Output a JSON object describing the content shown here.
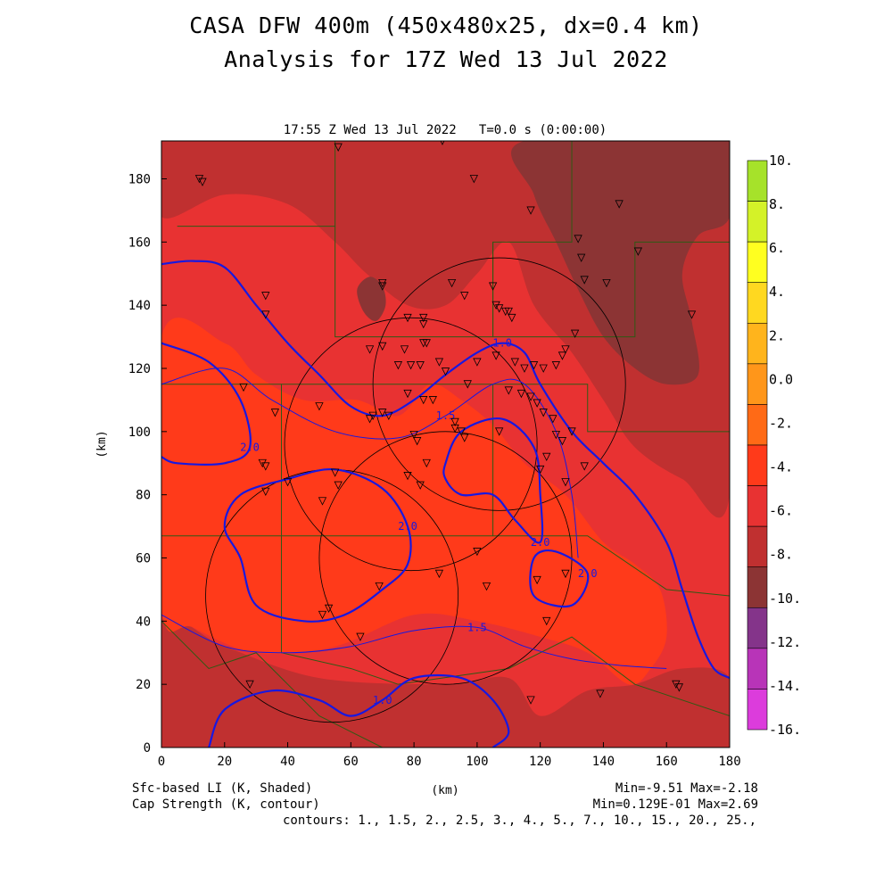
{
  "title": "CASA DFW 400m (450x480x25, dx=0.4 km)",
  "subtitle": "Analysis for 17Z Wed 13 Jul 2022",
  "colors": {
    "background": "#ffffff",
    "contour": "#1818e0",
    "map_lines": "#2f5a14",
    "radar_rings": "#000000"
  },
  "chart_data": {
    "type": "heatmap",
    "plot_header": "17:55 Z Wed 13 Jul 2022   T=0.0 s (0:00:00)",
    "xlabel": "(km)",
    "ylabel": "(km)",
    "xlim": [
      0,
      180
    ],
    "ylim": [
      0,
      192
    ],
    "x_ticks": [
      0,
      20,
      40,
      60,
      80,
      100,
      120,
      140,
      160,
      180
    ],
    "y_ticks": [
      0,
      20,
      40,
      60,
      80,
      100,
      120,
      140,
      160,
      180
    ],
    "shaded_field": "Sfc-based LI (K, Shaded)",
    "contour_field": "Cap Strength (K, contour)",
    "shaded_stats": "Min=-9.51 Max=-2.18",
    "contour_stats": "Min=0.129E-01 Max=2.69",
    "contour_levels_text": "contours: 1., 1.5, 2., 2.5, 3., 4., 5., 7., 10., 15., 20., 25.,",
    "colorbar": {
      "labels": [
        "10.",
        "8.",
        "6.",
        "4.",
        "2.",
        "0.0",
        "-2.",
        "-4.",
        "-6.",
        "-8.",
        "-10.",
        "-12.",
        "-14.",
        "-16."
      ],
      "colors": [
        "#a6e22a",
        "#d4f228",
        "#ffff20",
        "#ffd820",
        "#ffb41c",
        "#ff961a",
        "#ff6a16",
        "#ff3a1a",
        "#e83232",
        "#c03030",
        "#8c3434",
        "#84348a",
        "#b834b8",
        "#dc3cdc"
      ]
    },
    "regions": [
      {
        "name": "background",
        "value": -5,
        "color": "#e83232",
        "points": [
          [
            0,
            0
          ],
          [
            180,
            0
          ],
          [
            180,
            192
          ],
          [
            0,
            192
          ]
        ]
      },
      {
        "name": "southwest-band",
        "value": -6,
        "color": "#c03030",
        "points": [
          [
            0,
            40
          ],
          [
            20,
            32
          ],
          [
            50,
            22
          ],
          [
            90,
            20
          ],
          [
            110,
            22
          ],
          [
            120,
            10
          ],
          [
            135,
            18
          ],
          [
            150,
            20
          ],
          [
            165,
            25
          ],
          [
            180,
            22
          ],
          [
            180,
            0
          ],
          [
            0,
            0
          ]
        ]
      },
      {
        "name": "north-dark",
        "value": -7,
        "color": "#c03030",
        "points": [
          [
            0,
            168
          ],
          [
            20,
            175
          ],
          [
            40,
            172
          ],
          [
            55,
            160
          ],
          [
            65,
            150
          ],
          [
            78,
            140
          ],
          [
            90,
            140
          ],
          [
            100,
            150
          ],
          [
            110,
            160
          ],
          [
            118,
            140
          ],
          [
            130,
            125
          ],
          [
            140,
            110
          ],
          [
            150,
            95
          ],
          [
            165,
            85
          ],
          [
            180,
            80
          ],
          [
            180,
            192
          ],
          [
            0,
            192
          ]
        ]
      },
      {
        "name": "northeast-core",
        "value": -9,
        "color": "#8c3434",
        "points": [
          [
            115,
            192
          ],
          [
            118,
            175
          ],
          [
            125,
            160
          ],
          [
            132,
            145
          ],
          [
            140,
            130
          ],
          [
            150,
            120
          ],
          [
            160,
            115
          ],
          [
            170,
            118
          ],
          [
            168,
            135
          ],
          [
            165,
            150
          ],
          [
            170,
            162
          ],
          [
            180,
            168
          ],
          [
            180,
            192
          ]
        ]
      },
      {
        "name": "central-core",
        "value": -3,
        "color": "#ff3a1a",
        "points": [
          [
            0,
            130
          ],
          [
            20,
            128
          ],
          [
            30,
            118
          ],
          [
            45,
            110
          ],
          [
            62,
            110
          ],
          [
            75,
            105
          ],
          [
            85,
            115
          ],
          [
            95,
            110
          ],
          [
            105,
            102
          ],
          [
            115,
            90
          ],
          [
            128,
            80
          ],
          [
            140,
            65
          ],
          [
            150,
            58
          ],
          [
            158,
            50
          ],
          [
            160,
            35
          ],
          [
            155,
            25
          ],
          [
            148,
            20
          ],
          [
            135,
            30
          ],
          [
            120,
            35
          ],
          [
            100,
            40
          ],
          [
            80,
            42
          ],
          [
            55,
            32
          ],
          [
            30,
            30
          ],
          [
            10,
            38
          ],
          [
            0,
            45
          ]
        ]
      },
      {
        "name": "small-dark-cell",
        "value": -9,
        "color": "#8c3434",
        "points": [
          [
            62,
            145
          ],
          [
            66,
            149
          ],
          [
            70,
            146
          ],
          [
            71,
            140
          ],
          [
            68,
            135
          ],
          [
            64,
            138
          ]
        ]
      }
    ],
    "contours": [
      {
        "label": "1.0",
        "points": [
          [
            0,
            153
          ],
          [
            10,
            154
          ],
          [
            20,
            152
          ],
          [
            30,
            140
          ],
          [
            40,
            128
          ],
          [
            50,
            118
          ],
          [
            60,
            108
          ],
          [
            70,
            105
          ],
          [
            80,
            110
          ],
          [
            90,
            118
          ],
          [
            100,
            125
          ],
          [
            108,
            128
          ],
          [
            115,
            125
          ],
          [
            120,
            115
          ],
          [
            130,
            100
          ],
          [
            140,
            90
          ],
          [
            150,
            80
          ],
          [
            160,
            65
          ],
          [
            165,
            50
          ],
          [
            170,
            35
          ],
          [
            175,
            25
          ],
          [
            180,
            22
          ]
        ]
      },
      {
        "label": "2.0",
        "points": [
          [
            0,
            128
          ],
          [
            15,
            122
          ],
          [
            25,
            110
          ],
          [
            28,
            95
          ],
          [
            20,
            90
          ],
          [
            5,
            90
          ],
          [
            0,
            92
          ]
        ]
      },
      {
        "label": "2.0",
        "points": [
          [
            90,
            90
          ],
          [
            95,
            100
          ],
          [
            108,
            104
          ],
          [
            118,
            95
          ],
          [
            120,
            80
          ],
          [
            120,
            65
          ],
          [
            112,
            72
          ],
          [
            105,
            80
          ],
          [
            95,
            80
          ],
          [
            90,
            85
          ]
        ]
      },
      {
        "label": "1.0",
        "points": [
          [
            15,
            0
          ],
          [
            20,
            12
          ],
          [
            35,
            18
          ],
          [
            50,
            15
          ],
          [
            60,
            10
          ],
          [
            70,
            15
          ],
          [
            80,
            22
          ],
          [
            95,
            22
          ],
          [
            105,
            15
          ],
          [
            110,
            5
          ],
          [
            105,
            0
          ]
        ]
      },
      {
        "label": "2.0",
        "points": [
          [
            25,
            60
          ],
          [
            20,
            70
          ],
          [
            25,
            80
          ],
          [
            40,
            85
          ],
          [
            55,
            88
          ],
          [
            70,
            82
          ],
          [
            78,
            70
          ],
          [
            78,
            58
          ],
          [
            70,
            50
          ],
          [
            58,
            42
          ],
          [
            45,
            40
          ],
          [
            30,
            45
          ]
        ]
      },
      {
        "label": "2.0",
        "points": [
          [
            118,
            60
          ],
          [
            125,
            62
          ],
          [
            135,
            55
          ],
          [
            130,
            45
          ],
          [
            118,
            48
          ]
        ]
      }
    ],
    "thin_contours": [
      {
        "label": "1.5",
        "points": [
          [
            0,
            42
          ],
          [
            20,
            32
          ],
          [
            40,
            30
          ],
          [
            60,
            32
          ],
          [
            80,
            37
          ],
          [
            100,
            38
          ],
          [
            115,
            32
          ],
          [
            130,
            28
          ],
          [
            145,
            26
          ],
          [
            160,
            25
          ]
        ]
      },
      {
        "label": "1.5",
        "points": [
          [
            0,
            115
          ],
          [
            20,
            120
          ],
          [
            35,
            110
          ],
          [
            55,
            100
          ],
          [
            75,
            98
          ],
          [
            90,
            105
          ],
          [
            105,
            115
          ],
          [
            115,
            115
          ],
          [
            125,
            100
          ],
          [
            130,
            80
          ],
          [
            132,
            60
          ]
        ]
      }
    ],
    "radar_circles": [
      {
        "cx": 107,
        "cy": 115,
        "r": 40
      },
      {
        "cx": 79,
        "cy": 96,
        "r": 40
      },
      {
        "cx": 90,
        "cy": 60,
        "r": 40
      },
      {
        "cx": 54,
        "cy": 48,
        "r": 40
      }
    ],
    "county_lines": [
      [
        [
          5,
          165
        ],
        [
          55,
          165
        ],
        [
          55,
          192
        ]
      ],
      [
        [
          55,
          165
        ],
        [
          55,
          130
        ],
        [
          105,
          130
        ],
        [
          105,
          160
        ],
        [
          130,
          160
        ],
        [
          130,
          192
        ]
      ],
      [
        [
          105,
          160
        ],
        [
          105,
          130
        ],
        [
          150,
          130
        ],
        [
          150,
          160
        ],
        [
          180,
          160
        ]
      ],
      [
        [
          0,
          115
        ],
        [
          38,
          115
        ],
        [
          38,
          67
        ],
        [
          0,
          67
        ]
      ],
      [
        [
          38,
          115
        ],
        [
          105,
          115
        ],
        [
          105,
          67
        ],
        [
          38,
          67
        ]
      ],
      [
        [
          105,
          115
        ],
        [
          135,
          115
        ],
        [
          135,
          100
        ],
        [
          180,
          100
        ]
      ],
      [
        [
          38,
          67
        ],
        [
          38,
          30
        ],
        [
          60,
          25
        ],
        [
          75,
          20
        ]
      ],
      [
        [
          105,
          67
        ],
        [
          135,
          67
        ],
        [
          160,
          50
        ],
        [
          180,
          48
        ]
      ],
      [
        [
          75,
          20
        ],
        [
          110,
          25
        ],
        [
          130,
          35
        ],
        [
          150,
          20
        ],
        [
          180,
          10
        ]
      ],
      [
        [
          0,
          40
        ],
        [
          15,
          25
        ],
        [
          30,
          30
        ],
        [
          40,
          20
        ],
        [
          50,
          10
        ],
        [
          60,
          5
        ],
        [
          70,
          0
        ]
      ]
    ],
    "stations": [
      [
        12,
        180
      ],
      [
        13,
        179
      ],
      [
        56,
        190
      ],
      [
        89,
        192
      ],
      [
        99,
        180
      ],
      [
        117,
        170
      ],
      [
        145,
        172
      ],
      [
        151,
        157
      ],
      [
        132,
        161
      ],
      [
        133,
        155
      ],
      [
        134,
        148
      ],
      [
        141,
        147
      ],
      [
        168,
        137
      ],
      [
        33,
        143
      ],
      [
        33,
        137
      ],
      [
        70,
        147
      ],
      [
        70,
        146
      ],
      [
        92,
        147
      ],
      [
        96,
        143
      ],
      [
        105,
        146
      ],
      [
        106,
        140
      ],
      [
        107,
        139
      ],
      [
        109,
        138
      ],
      [
        110,
        138
      ],
      [
        111,
        136
      ],
      [
        66,
        126
      ],
      [
        70,
        127
      ],
      [
        78,
        136
      ],
      [
        83,
        136
      ],
      [
        83,
        134
      ],
      [
        84,
        128
      ],
      [
        77,
        126
      ],
      [
        75,
        121
      ],
      [
        79,
        121
      ],
      [
        82,
        121
      ],
      [
        83,
        128
      ],
      [
        88,
        122
      ],
      [
        90,
        119
      ],
      [
        97,
        115
      ],
      [
        100,
        122
      ],
      [
        106,
        124
      ],
      [
        112,
        122
      ],
      [
        115,
        120
      ],
      [
        118,
        121
      ],
      [
        121,
        120
      ],
      [
        125,
        121
      ],
      [
        127,
        124
      ],
      [
        128,
        126
      ],
      [
        131,
        131
      ],
      [
        26,
        114
      ],
      [
        36,
        106
      ],
      [
        50,
        108
      ],
      [
        66,
        104
      ],
      [
        67,
        105
      ],
      [
        70,
        106
      ],
      [
        72,
        105
      ],
      [
        78,
        112
      ],
      [
        83,
        110
      ],
      [
        86,
        110
      ],
      [
        107,
        100
      ],
      [
        110,
        113
      ],
      [
        114,
        112
      ],
      [
        117,
        111
      ],
      [
        119,
        109
      ],
      [
        121,
        106
      ],
      [
        124,
        104
      ],
      [
        125,
        99
      ],
      [
        127,
        97
      ],
      [
        130,
        100
      ],
      [
        134,
        89
      ],
      [
        128,
        84
      ],
      [
        32,
        90
      ],
      [
        33,
        89
      ],
      [
        33,
        81
      ],
      [
        40,
        84
      ],
      [
        55,
        87
      ],
      [
        56,
        83
      ],
      [
        80,
        99
      ],
      [
        81,
        97
      ],
      [
        84,
        90
      ],
      [
        78,
        86
      ],
      [
        82,
        83
      ],
      [
        93,
        103
      ],
      [
        93,
        101
      ],
      [
        95,
        100
      ],
      [
        96,
        98
      ],
      [
        122,
        92
      ],
      [
        120,
        88
      ],
      [
        51,
        78
      ],
      [
        100,
        62
      ],
      [
        88,
        55
      ],
      [
        103,
        51
      ],
      [
        119,
        53
      ],
      [
        128,
        55
      ],
      [
        69,
        51
      ],
      [
        53,
        44
      ],
      [
        51,
        42
      ],
      [
        63,
        35
      ],
      [
        122,
        40
      ],
      [
        139,
        17
      ],
      [
        163,
        20
      ],
      [
        164,
        19
      ],
      [
        117,
        15
      ],
      [
        28,
        20
      ]
    ]
  },
  "footer": {
    "left_line1": "Sfc-based LI (K, Shaded)",
    "left_line2": "Cap Strength (K, contour)",
    "xunit": "(km)"
  }
}
